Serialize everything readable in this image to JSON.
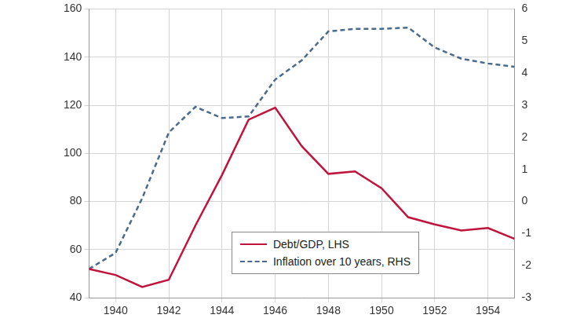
{
  "chart_data": {
    "type": "line",
    "x": [
      1939,
      1940,
      1941,
      1942,
      1943,
      1944,
      1945,
      1946,
      1947,
      1948,
      1949,
      1950,
      1951,
      1952,
      1953,
      1954,
      1955
    ],
    "series": [
      {
        "name": "Debt/GDP, LHS",
        "color": "#c0143c",
        "line_style": "solid",
        "values": [
          52,
          49.5,
          44.5,
          47.5,
          70,
          91,
          114,
          119,
          103,
          91.5,
          92.5,
          85.5,
          73.5,
          70.5,
          68,
          69,
          64.5
        ]
      },
      {
        "name": "Inflation over 10 years, RHS",
        "color": "#4a6b8c",
        "line_style": "dashed",
        "axis": "y2",
        "values": [
          -2.1,
          -1.6,
          0.1,
          2.15,
          2.95,
          2.6,
          2.65,
          3.8,
          4.4,
          5.3,
          5.38,
          5.38,
          5.42,
          4.8,
          4.45,
          4.3,
          4.2
        ]
      }
    ],
    "xlim": [
      1939,
      1955
    ],
    "xticks": [
      1940,
      1942,
      1944,
      1946,
      1948,
      1950,
      1952,
      1954
    ],
    "ylim": [
      40,
      160
    ],
    "yticks": [
      40,
      60,
      80,
      100,
      120,
      140,
      160
    ],
    "y2lim": [
      -3,
      6
    ],
    "y2ticks": [
      -3,
      -2,
      -1,
      0,
      1,
      2,
      3,
      4,
      5,
      6
    ],
    "grid": true,
    "legend": "bottom"
  }
}
